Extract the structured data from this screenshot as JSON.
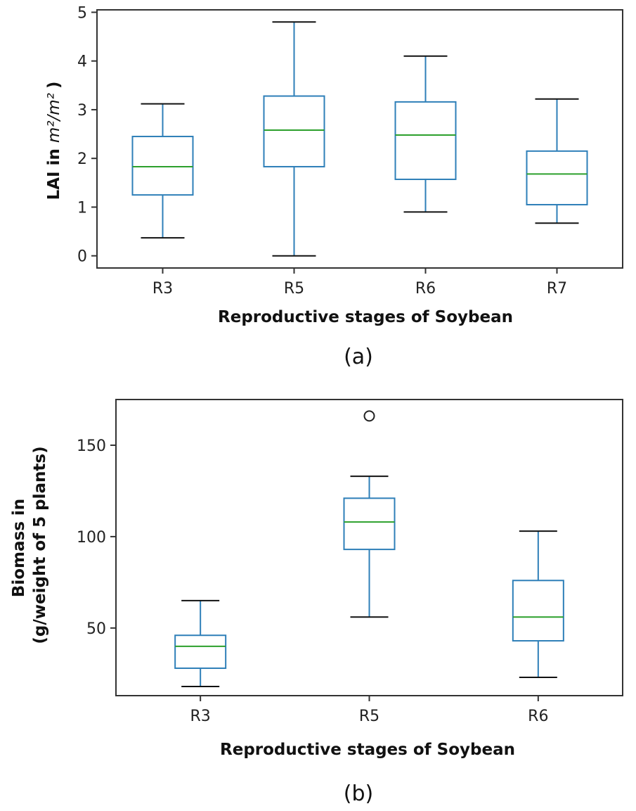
{
  "chart_data": [
    {
      "type": "box",
      "panel_label": "(a)",
      "title": "",
      "xlabel": "Reproductive stages of Soybean",
      "ylabel_prefix": "LAI in ",
      "ylabel_unit": "m²/m²",
      "ylabel_open": "(",
      "ylabel_close": ")",
      "ylim": [
        -0.25,
        5.05
      ],
      "yticks": [
        0,
        1,
        2,
        3,
        4,
        5
      ],
      "ytick_labels": [
        "0",
        "1",
        "2",
        "3",
        "4",
        "5"
      ],
      "categories": [
        "R3",
        "R5",
        "R6",
        "R7"
      ],
      "boxes": [
        {
          "min": 0.37,
          "q1": 1.25,
          "median": 1.83,
          "q3": 2.45,
          "max": 3.12,
          "outliers": []
        },
        {
          "min": 0.0,
          "q1": 1.83,
          "median": 2.58,
          "q3": 3.28,
          "max": 4.8,
          "outliers": []
        },
        {
          "min": 0.9,
          "q1": 1.57,
          "median": 2.48,
          "q3": 3.16,
          "max": 4.1,
          "outliers": []
        },
        {
          "min": 0.67,
          "q1": 1.05,
          "median": 1.68,
          "q3": 2.15,
          "max": 3.22,
          "outliers": []
        }
      ],
      "colors": {
        "box": "#2e7fb8",
        "median": "#2ca02c",
        "whisker_cap": "#111111",
        "frame": "#333333"
      }
    },
    {
      "type": "box",
      "panel_label": "(b)",
      "title": "",
      "xlabel": "Reproductive stages of Soybean",
      "ylabel_lines": [
        "Biomass in",
        "(g/weight of 5 plants)"
      ],
      "ylim": [
        13,
        175
      ],
      "yticks": [
        50,
        100,
        150
      ],
      "ytick_labels": [
        "50",
        "100",
        "150"
      ],
      "categories": [
        "R3",
        "R5",
        "R6"
      ],
      "boxes": [
        {
          "min": 18,
          "q1": 28,
          "median": 40,
          "q3": 46,
          "max": 65,
          "outliers": []
        },
        {
          "min": 56,
          "q1": 93,
          "median": 108,
          "q3": 121,
          "max": 133,
          "outliers": [
            166
          ]
        },
        {
          "min": 23,
          "q1": 43,
          "median": 56,
          "q3": 76,
          "max": 103,
          "outliers": []
        }
      ],
      "colors": {
        "box": "#2e7fb8",
        "median": "#2ca02c",
        "whisker_cap": "#111111",
        "frame": "#333333"
      }
    }
  ]
}
